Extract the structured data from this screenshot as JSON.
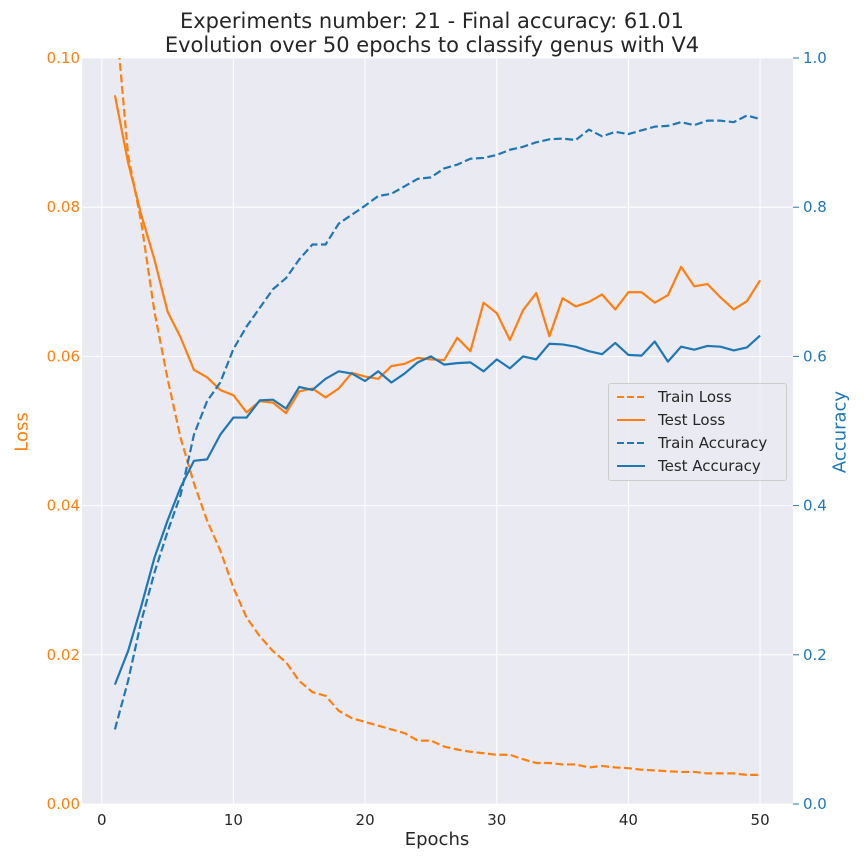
{
  "chart_data": {
    "type": "line",
    "title": "Experiments number: 21 - Final accuracy: 61.01",
    "subtitle": "Evolution over 50 epochs to classify genus with V4",
    "xlabel": "Epochs",
    "ylabel_left": "Loss",
    "ylabel_right": "Accuracy",
    "xlim": [
      -1.5,
      52.5
    ],
    "ylim_left": [
      0,
      0.1
    ],
    "ylim_right": [
      0,
      1.0
    ],
    "xticks": [
      0,
      10,
      20,
      30,
      40,
      50
    ],
    "yticks_left": [
      "0.00",
      "0.02",
      "0.04",
      "0.06",
      "0.08",
      "0.10"
    ],
    "yticks_right": [
      "0.0",
      "0.2",
      "0.4",
      "0.6",
      "0.8",
      "1.0"
    ],
    "grid": true,
    "legend_position": "center-right",
    "x": [
      1,
      2,
      3,
      4,
      5,
      6,
      7,
      8,
      9,
      10,
      11,
      12,
      13,
      14,
      15,
      16,
      17,
      18,
      19,
      20,
      21,
      22,
      23,
      24,
      25,
      26,
      27,
      28,
      29,
      30,
      31,
      32,
      33,
      34,
      35,
      36,
      37,
      38,
      39,
      40,
      41,
      42,
      43,
      44,
      45,
      46,
      47,
      48,
      49,
      50
    ],
    "series": [
      {
        "name": "Train Loss",
        "axis": "left",
        "style": "dashed",
        "color": "#ff7f0e",
        "values": [
          0.107,
          0.087,
          0.078,
          0.066,
          0.057,
          0.049,
          0.043,
          0.038,
          0.034,
          0.029,
          0.025,
          0.0225,
          0.0205,
          0.019,
          0.0165,
          0.015,
          0.0145,
          0.0125,
          0.0115,
          0.011,
          0.0105,
          0.01,
          0.0095,
          0.0085,
          0.0085,
          0.0077,
          0.0073,
          0.007,
          0.0068,
          0.0066,
          0.0066,
          0.006,
          0.0055,
          0.0055,
          0.0053,
          0.0053,
          0.0049,
          0.0051,
          0.0049,
          0.0048,
          0.0046,
          0.0045,
          0.0044,
          0.0043,
          0.0043,
          0.0041,
          0.0041,
          0.0041,
          0.0039,
          0.0039
        ]
      },
      {
        "name": "Test Loss",
        "axis": "left",
        "style": "solid",
        "color": "#ff7f0e",
        "values": [
          0.095,
          0.086,
          0.079,
          0.073,
          0.066,
          0.0625,
          0.0582,
          0.0572,
          0.0555,
          0.0548,
          0.0525,
          0.054,
          0.0538,
          0.0524,
          0.0553,
          0.0557,
          0.0545,
          0.0557,
          0.0578,
          0.0573,
          0.057,
          0.0587,
          0.059,
          0.0598,
          0.0596,
          0.0595,
          0.0625,
          0.0607,
          0.0672,
          0.0658,
          0.0622,
          0.0662,
          0.0685,
          0.0627,
          0.0678,
          0.0667,
          0.0673,
          0.0683,
          0.0663,
          0.0686,
          0.0686,
          0.0672,
          0.0682,
          0.072,
          0.0694,
          0.0697,
          0.0679,
          0.0663,
          0.0674,
          0.0702
        ]
      },
      {
        "name": "Train Accuracy",
        "axis": "right",
        "style": "dashed",
        "color": "#1f77b4",
        "values": [
          0.1,
          0.165,
          0.245,
          0.31,
          0.365,
          0.415,
          0.495,
          0.54,
          0.565,
          0.61,
          0.64,
          0.665,
          0.69,
          0.705,
          0.73,
          0.75,
          0.75,
          0.778,
          0.79,
          0.802,
          0.815,
          0.818,
          0.828,
          0.838,
          0.84,
          0.852,
          0.857,
          0.865,
          0.866,
          0.87,
          0.877,
          0.881,
          0.887,
          0.891,
          0.892,
          0.89,
          0.904,
          0.895,
          0.901,
          0.898,
          0.903,
          0.908,
          0.909,
          0.914,
          0.91,
          0.916,
          0.916,
          0.914,
          0.923,
          0.918
        ]
      },
      {
        "name": "Test Accuracy",
        "axis": "right",
        "style": "solid",
        "color": "#1f77b4",
        "values": [
          0.16,
          0.205,
          0.265,
          0.33,
          0.38,
          0.425,
          0.46,
          0.462,
          0.495,
          0.518,
          0.518,
          0.541,
          0.542,
          0.53,
          0.559,
          0.555,
          0.57,
          0.58,
          0.577,
          0.567,
          0.58,
          0.565,
          0.577,
          0.592,
          0.6,
          0.589,
          0.591,
          0.592,
          0.58,
          0.596,
          0.584,
          0.6,
          0.596,
          0.617,
          0.616,
          0.613,
          0.607,
          0.603,
          0.618,
          0.602,
          0.601,
          0.62,
          0.593,
          0.613,
          0.609,
          0.614,
          0.613,
          0.608,
          0.612,
          0.628
        ]
      }
    ]
  },
  "colors": {
    "background": "#eaeaf2",
    "grid": "#ffffff",
    "loss_axis": "#ff7f0e",
    "accuracy_axis": "#1f77b4"
  }
}
